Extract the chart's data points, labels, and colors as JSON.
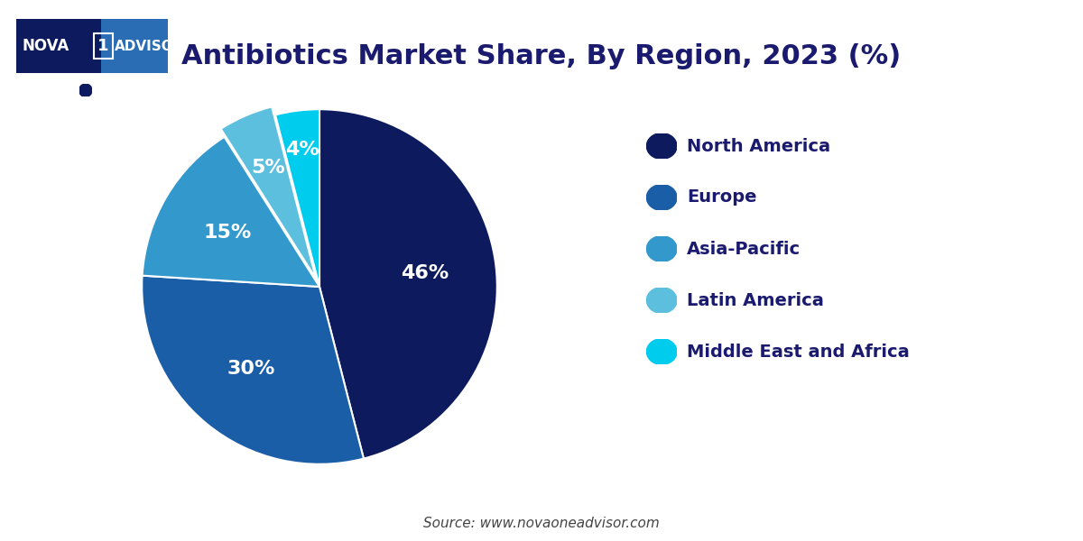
{
  "title": "Antibiotics Market Share, By Region, 2023 (%)",
  "title_color": "#1a1a6e",
  "title_fontsize": 22,
  "background_color": "#ffffff",
  "regions": [
    "North America",
    "Europe",
    "Asia-Pacific",
    "Latin America",
    "Middle East and Africa"
  ],
  "values": [
    46,
    30,
    15,
    5,
    4
  ],
  "colors": [
    "#0d1b5e",
    "#1a5ea8",
    "#3399cc",
    "#5bbfdd",
    "#00ccee"
  ],
  "explode": [
    0,
    0,
    0,
    0.05,
    0
  ],
  "label_pcts": [
    "46%",
    "30%",
    "15%",
    "5%",
    "4%"
  ],
  "label_color": "#ffffff",
  "label_fontsize": 16,
  "legend_text_color": "#1a1a6e",
  "legend_fontsize": 14,
  "source_text": "Source: www.novaoneadvisor.com",
  "source_fontsize": 11,
  "source_color": "#444444",
  "line_color": "#0d1b5e"
}
